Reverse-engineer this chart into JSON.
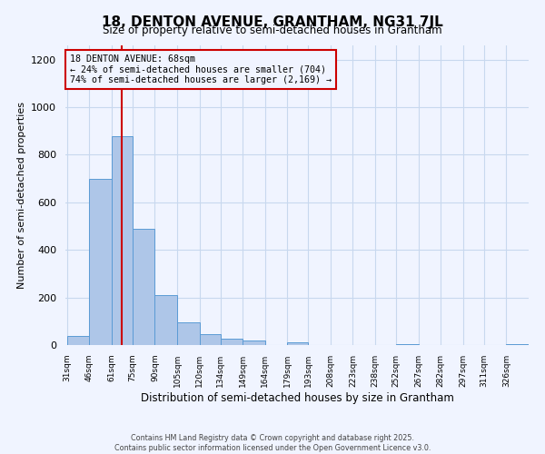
{
  "title": "18, DENTON AVENUE, GRANTHAM, NG31 7JL",
  "subtitle": "Size of property relative to semi-detached houses in Grantham",
  "xlabel": "Distribution of semi-detached houses by size in Grantham",
  "ylabel": "Number of semi-detached properties",
  "bin_labels": [
    "31sqm",
    "46sqm",
    "61sqm",
    "75sqm",
    "90sqm",
    "105sqm",
    "120sqm",
    "134sqm",
    "149sqm",
    "164sqm",
    "179sqm",
    "193sqm",
    "208sqm",
    "223sqm",
    "238sqm",
    "252sqm",
    "267sqm",
    "282sqm",
    "297sqm",
    "311sqm",
    "326sqm"
  ],
  "bin_edges": [
    31,
    46,
    61,
    75,
    90,
    105,
    120,
    134,
    149,
    164,
    179,
    193,
    208,
    223,
    238,
    252,
    267,
    282,
    297,
    311,
    326
  ],
  "bar_heights": [
    40,
    700,
    880,
    490,
    210,
    95,
    45,
    25,
    20,
    0,
    10,
    0,
    0,
    0,
    0,
    5,
    0,
    0,
    0,
    0,
    5
  ],
  "bar_color": "#aec6e8",
  "bar_edgecolor": "#5b9bd5",
  "property_line_x": 68,
  "property_sqm": 68,
  "property_label": "18 DENTON AVENUE: 68sqm",
  "pct_smaller": 24,
  "count_smaller": 704,
  "pct_larger": 74,
  "count_larger": 2169,
  "annotation_box_edgecolor": "#cc0000",
  "property_line_color": "#cc0000",
  "ylim": [
    0,
    1260
  ],
  "yticks": [
    0,
    200,
    400,
    600,
    800,
    1000,
    1200
  ],
  "footer_line1": "Contains HM Land Registry data © Crown copyright and database right 2025.",
  "footer_line2": "Contains public sector information licensed under the Open Government Licence v3.0.",
  "bg_color": "#f0f4ff",
  "grid_color": "#c8d8ee"
}
